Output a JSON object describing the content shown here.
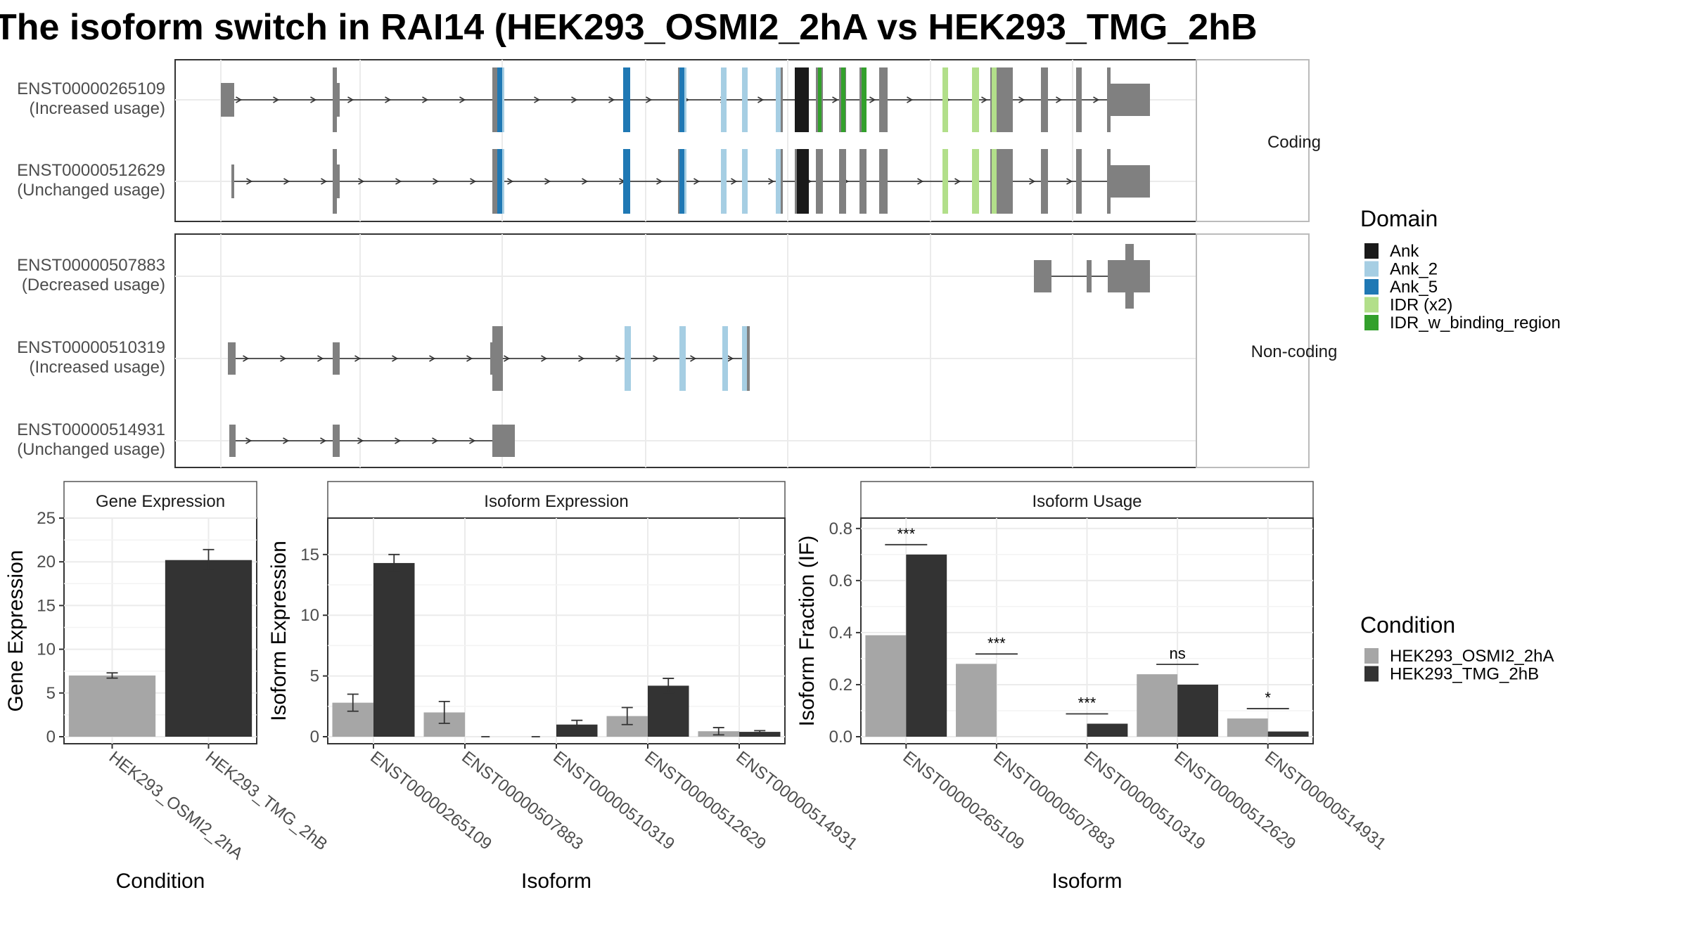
{
  "title": "The isoform switch in RAI14 (HEK293_OSMI2_2hA vs HEK293_TMG_2hB",
  "colors": {
    "cond_a": "#A6A6A6",
    "cond_b": "#333333",
    "exon": "#808080",
    "Ank": "#1a1a1a",
    "Ank_2": "#A6CEE3",
    "Ank_5": "#1F78B4",
    "IDR (x2)": "#B2DF8A",
    "IDR_w_binding_region": "#33A02C"
  },
  "structure": {
    "groups": [
      {
        "label": "Coding",
        "transcripts": [
          {
            "id": "ENST00000265109",
            "status": "(Increased usage)"
          },
          {
            "id": "ENST00000512629",
            "status": "(Unchanged usage)"
          }
        ]
      },
      {
        "label": "Non-coding",
        "transcripts": [
          {
            "id": "ENST00000507883",
            "status": "(Decreased usage)"
          },
          {
            "id": "ENST00000510319",
            "status": "(Increased usage)"
          },
          {
            "id": "ENST00000514931",
            "status": "(Unchanged usage)"
          }
        ]
      }
    ]
  },
  "domain_legend": {
    "title": "Domain",
    "items": [
      "Ank",
      "Ank_2",
      "Ank_5",
      "IDR (x2)",
      "IDR_w_binding_region"
    ]
  },
  "condition_legend": {
    "title": "Condition",
    "items": [
      "HEK293_OSMI2_2hA",
      "HEK293_TMG_2hB"
    ]
  },
  "chart_data": [
    {
      "type": "bar",
      "title": "Gene Expression",
      "xlabel": "Condition",
      "ylabel": "Gene Expression",
      "ylim": [
        0,
        25
      ],
      "yticks": [
        0,
        5,
        10,
        15,
        20,
        25
      ],
      "categories": [
        "HEK293_OSMI2_2hA",
        "HEK293_TMG_2hB"
      ],
      "values": [
        7.0,
        20.2
      ],
      "errors": [
        0.3,
        1.2
      ],
      "grid": true
    },
    {
      "type": "bar",
      "title": "Isoform Expression",
      "xlabel": "Isoform",
      "ylabel": "Isoform Expression",
      "ylim": [
        0,
        18
      ],
      "yticks": [
        0,
        5,
        10,
        15
      ],
      "categories": [
        "ENST00000265109",
        "ENST00000507883",
        "ENST00000510319",
        "ENST00000512629",
        "ENST00000514931"
      ],
      "series": [
        {
          "name": "HEK293_OSMI2_2hA",
          "values": [
            2.8,
            2.0,
            0.0,
            1.7,
            0.45
          ],
          "errors": [
            0.7,
            0.9,
            0.0,
            0.7,
            0.3
          ]
        },
        {
          "name": "HEK293_TMG_2hB",
          "values": [
            14.3,
            0.0,
            1.0,
            4.2,
            0.4
          ],
          "errors": [
            0.7,
            0.0,
            0.35,
            0.6,
            0.1
          ]
        }
      ],
      "grid": true
    },
    {
      "type": "bar",
      "title": "Isoform Usage",
      "xlabel": "Isoform",
      "ylabel": "Isoform Fraction (IF)",
      "ylim": [
        0,
        0.84
      ],
      "yticks": [
        "0.0",
        "0.2",
        "0.4",
        "0.6",
        "0.8"
      ],
      "categories": [
        "ENST00000265109",
        "ENST00000507883",
        "ENST00000510319",
        "ENST00000512629",
        "ENST00000514931"
      ],
      "series": [
        {
          "name": "HEK293_OSMI2_2hA",
          "values": [
            0.39,
            0.28,
            0.0,
            0.24,
            0.07
          ]
        },
        {
          "name": "HEK293_TMG_2hB",
          "values": [
            0.7,
            0.0,
            0.05,
            0.2,
            0.02
          ]
        }
      ],
      "significance": [
        "***",
        "***",
        "***",
        "ns",
        "*"
      ],
      "grid": true
    }
  ]
}
